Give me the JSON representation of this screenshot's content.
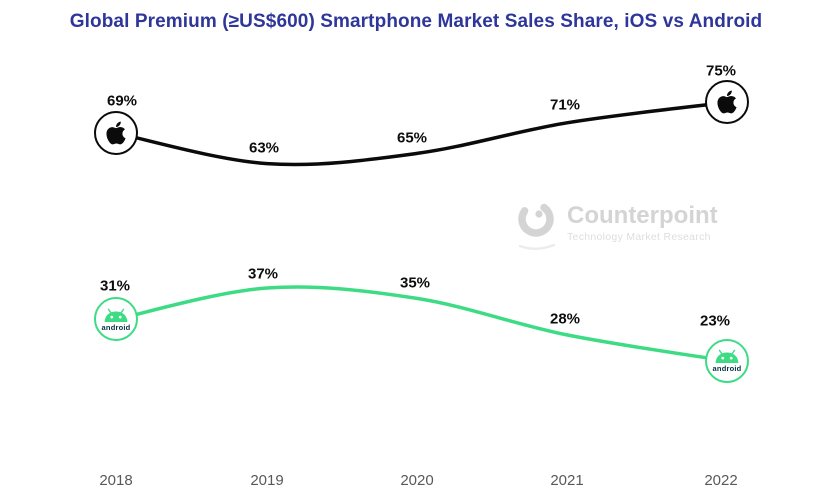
{
  "watermark": {
    "brand": "Counterpoint",
    "tagline": "Technology Market Research"
  },
  "chart_data": {
    "type": "line",
    "title": "Global Premium (≥US$600) Smartphone Market Sales Share, iOS vs Android",
    "title_color": "#2F3699",
    "categories": [
      "2018",
      "2019",
      "2020",
      "2021",
      "2022"
    ],
    "series": [
      {
        "name": "iOS",
        "color": "#0B0B0B",
        "marker": "apple-logo-in-circle",
        "values": [
          69,
          63,
          65,
          71,
          75
        ],
        "point_labels": [
          "69%",
          "63%",
          "65%",
          "71%",
          "75%"
        ]
      },
      {
        "name": "Android",
        "color": "#3DDC84",
        "marker": "android-logo-in-circle",
        "marker_wordmark": "android",
        "values": [
          31,
          37,
          35,
          28,
          23
        ],
        "point_labels": [
          "31%",
          "37%",
          "35%",
          "28%",
          "23%"
        ]
      }
    ],
    "unit": "%",
    "xlabel": "",
    "ylabel": "",
    "ylim": [
      0,
      100
    ],
    "grid": false,
    "legend_position": "none (brand icons at line endpoints)",
    "x_axis_label_color": "#595959"
  }
}
